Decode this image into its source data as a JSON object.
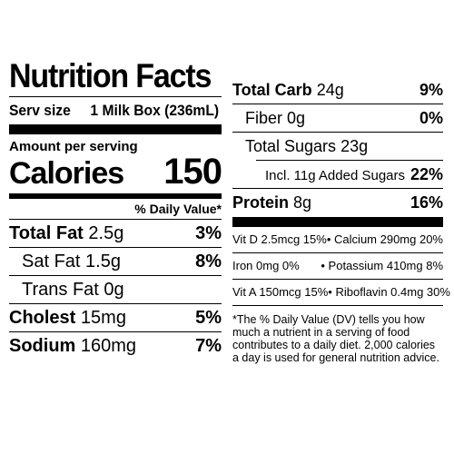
{
  "title": "Nutrition Facts",
  "serving": {
    "label": "Serv size",
    "value": "1 Milk Box (236mL)"
  },
  "amount_per_serving": "Amount per serving",
  "calories": {
    "label": "Calories",
    "value": "150"
  },
  "daily_value_header": "% Daily Value*",
  "left_nutrients": [
    {
      "name": "Total Fat",
      "amount": "2.5g",
      "dv": "3%"
    },
    {
      "name": "Sat Fat",
      "amount": "1.5g",
      "dv": "8%"
    },
    {
      "name": "Trans Fat",
      "amount": "0g",
      "dv": ""
    },
    {
      "name": "Cholest",
      "amount": "15mg",
      "dv": "5%"
    },
    {
      "name": "Sodium",
      "amount": "160mg",
      "dv": "7%"
    }
  ],
  "right_nutrients": [
    {
      "name": "Total Carb",
      "amount": "24g",
      "dv": "9%"
    },
    {
      "name": "Fiber",
      "amount": "0g",
      "dv": "0%"
    },
    {
      "name": "Total Sugars",
      "amount": "23g",
      "dv": ""
    },
    {
      "name": "Incl. 11g Added Sugars",
      "amount": "",
      "dv": "22%"
    },
    {
      "name": "Protein",
      "amount": "8g",
      "dv": "16%"
    }
  ],
  "vitamins": [
    {
      "left": "Vit D 2.5mcg 15%",
      "right": "Calcium 290mg 20%"
    },
    {
      "left": "Iron 0mg 0%",
      "right": "Potassium 410mg 8%"
    },
    {
      "left": "Vit A 150mcg 15%",
      "right": "Riboflavin 0.4mg 30%"
    }
  ],
  "bullet": "•",
  "footnote": "*The % Daily Value (DV) tells you how much a nutrient in a serving of food contributes to a daily diet. 2,000 calories a day is used for general nutrition advice."
}
